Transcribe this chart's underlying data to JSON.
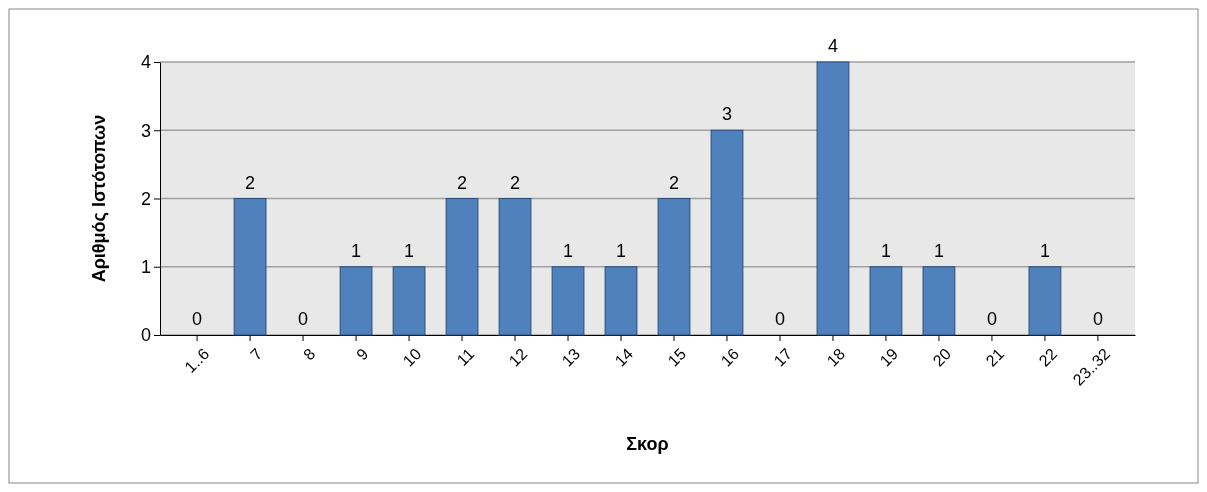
{
  "chart_data": {
    "type": "bar",
    "xlabel": "Σκορ",
    "ylabel": "Αριθμός Ιστότοπων",
    "categories": [
      "1..6",
      "7",
      "8",
      "9",
      "10",
      "11",
      "12",
      "13",
      "14",
      "15",
      "16",
      "17",
      "18",
      "19",
      "20",
      "21",
      "22",
      "23..32"
    ],
    "values": [
      0,
      2,
      0,
      1,
      1,
      2,
      2,
      1,
      1,
      2,
      3,
      0,
      4,
      1,
      1,
      0,
      1,
      0
    ],
    "color": "#4f81bd",
    "ylim": [
      0,
      4
    ],
    "yticks": [
      0,
      1,
      2,
      3,
      4
    ],
    "grid": "y",
    "data_labels": true
  }
}
